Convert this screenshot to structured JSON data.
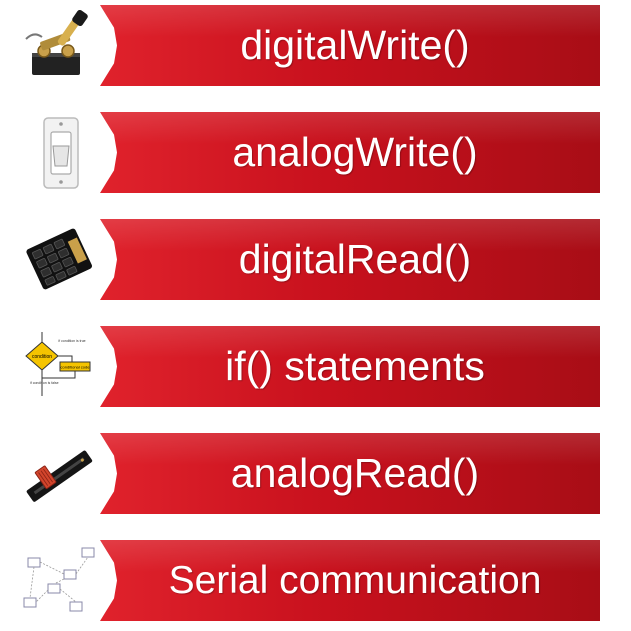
{
  "items": [
    {
      "label": "digitalWrite()",
      "icon": "toggle-switch-icon"
    },
    {
      "label": "analogWrite()",
      "icon": "light-switch-icon"
    },
    {
      "label": "digitalRead()",
      "icon": "keypad-icon"
    },
    {
      "label": "if() statements",
      "icon": "flowchart-icon"
    },
    {
      "label": "analogRead()",
      "icon": "slide-potentiometer-icon"
    },
    {
      "label": "Serial communication",
      "icon": "network-diagram-icon"
    }
  ],
  "flowchart": {
    "condition": "condition",
    "if_true": "if condition is true",
    "code": "conditional code",
    "if_false": "if condition is false"
  }
}
